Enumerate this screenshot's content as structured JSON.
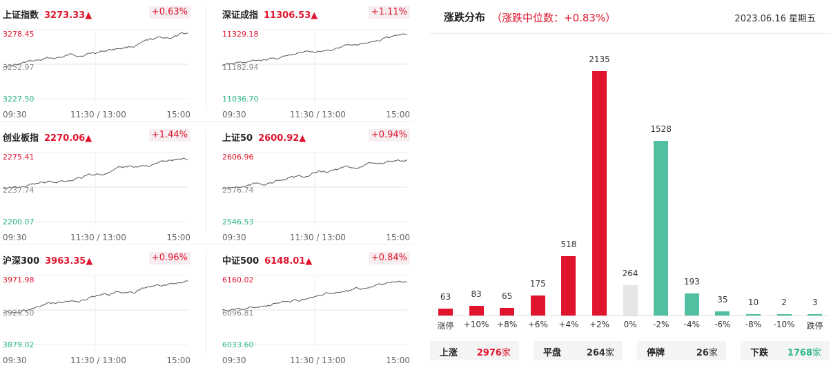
{
  "indices": [
    {
      "name": "上证指数",
      "price": "3273.33▲",
      "pct": "+0.63%",
      "hi": "3278.45",
      "mid": "3252.97",
      "lo": "3227.50",
      "t0": "09:30",
      "t1": "11:30 / 13:00",
      "t2": "15:00"
    },
    {
      "name": "深证成指",
      "price": "11306.53▲",
      "pct": "+1.11%",
      "hi": "11329.18",
      "mid": "11182.94",
      "lo": "11036.70",
      "t0": "09:30",
      "t1": "11:30 / 13:00",
      "t2": "15:00"
    },
    {
      "name": "创业板指",
      "price": "2270.06▲",
      "pct": "+1.44%",
      "hi": "2275.41",
      "mid": "2237.74",
      "lo": "2200.07",
      "t0": "09:30",
      "t1": "11:30 / 13:00",
      "t2": "15:00"
    },
    {
      "name": "上证50",
      "price": "2600.92▲",
      "pct": "+0.94%",
      "hi": "2606.96",
      "mid": "2576.74",
      "lo": "2546.53",
      "t0": "09:30",
      "t1": "11:30 / 13:00",
      "t2": "15:00"
    },
    {
      "name": "沪深300",
      "price": "3963.35▲",
      "pct": "+0.96%",
      "hi": "3971.98",
      "mid": "3925.50",
      "lo": "3879.02",
      "t0": "09:30",
      "t1": "11:30 / 13:00",
      "t2": "15:00"
    },
    {
      "name": "中证500",
      "price": "6148.01▲",
      "pct": "+0.84%",
      "hi": "6160.02",
      "mid": "6096.81",
      "lo": "6033.60",
      "t0": "09:30",
      "t1": "11:30 / 13:00",
      "t2": "15:00"
    }
  ],
  "dist": {
    "title": "涨跌分布",
    "subtitle": "（涨跌中位数：+0.83%）",
    "date": "2023.06.16 星期五"
  },
  "chart_data": {
    "type": "bar",
    "categories": [
      "涨停",
      "+10%",
      "+8%",
      "+6%",
      "+4%",
      "+2%",
      "0%",
      "-2%",
      "-4%",
      "-6%",
      "-8%",
      "-10%",
      "跌停"
    ],
    "values": [
      63,
      83,
      65,
      175,
      518,
      2135,
      264,
      1528,
      193,
      35,
      10,
      2,
      3
    ],
    "value_labels": [
      "63",
      "83",
      "65",
      "175",
      "518",
      "2135",
      "264",
      "1528",
      "193",
      "35",
      "10",
      "2",
      "3"
    ],
    "colors": [
      "#e0142d",
      "#e0142d",
      "#e0142d",
      "#e0142d",
      "#e0142d",
      "#e0142d",
      "#e6e6e6",
      "#50c0a0",
      "#50c0a0",
      "#50c0a0",
      "#50c0a0",
      "#50c0a0",
      "#50c0a0"
    ]
  },
  "summary": [
    {
      "key": "上涨",
      "num": "2976",
      "unit": "家",
      "tone": "red"
    },
    {
      "key": "平盘",
      "num": "264",
      "unit": "家",
      "tone": "gray"
    },
    {
      "key": "停牌",
      "num": "26",
      "unit": "家",
      "tone": "gray"
    },
    {
      "key": "下跌",
      "num": "1768",
      "unit": "家",
      "tone": "green"
    }
  ]
}
